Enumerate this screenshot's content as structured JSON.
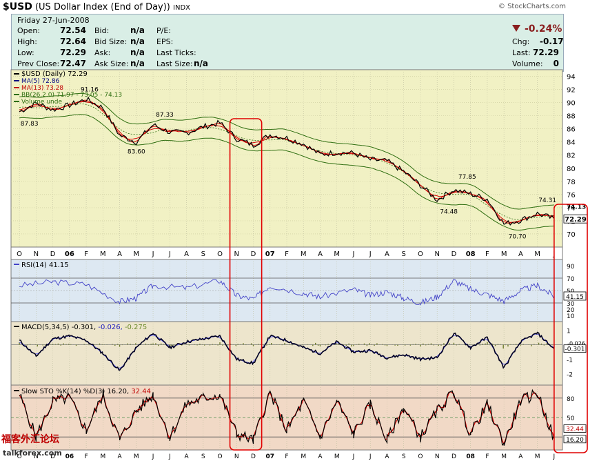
{
  "header": {
    "symbol": "$USD",
    "name": "(US Dollar Index (End of Day))",
    "exchange": "INDX",
    "watermark": "© StockCharts.com"
  },
  "quote": {
    "date": "Friday  27-Jun-2008",
    "open_label": "Open:",
    "open": "72.54",
    "high_label": "High:",
    "high": "72.64",
    "low_label": "Low:",
    "low": "72.29",
    "prev_label": "Prev Close:",
    "prev": "72.47",
    "bid_label": "Bid:",
    "bid": "n/a",
    "bidsize_label": "Bid Size:",
    "bidsize": "n/a",
    "ask_label": "Ask:",
    "ask": "n/a",
    "asksize_label": "Ask Size:",
    "asksize": "n/a",
    "pe_label": "P/E:",
    "eps_label": "EPS:",
    "lastticks_label": "Last Ticks:",
    "lastsize_label": "Last Size:",
    "lastsize": "n/a",
    "chgpct": "-0.24%",
    "chg_label": "Chg:",
    "chg": "-0.17",
    "last_label": "Last:",
    "last": "72.29",
    "vol_label": "Volume:",
    "vol": "0"
  },
  "legend": {
    "price": "$USD (Daily) 72.29",
    "ma5": "MA(5) 72.86",
    "ma13": "MA(13) 73.28",
    "bb": "BB(26,2.0) 71.97 - 73.05 - 74.13",
    "volume": "Volume unde",
    "rsi": "RSI(14) 41.15",
    "macd_label": "MACD(5,34,5)",
    "macd_v1": "-0.301,",
    "macd_v2": "-0.026,",
    "macd_v3": "-0.275",
    "sto": "Slow STO %K(14) %D(3) 16.20,",
    "sto_v2": "32.44"
  },
  "footer": {
    "site_cn": "福客外汇论坛",
    "site": "talkforex.com"
  },
  "colors": {
    "price_bg": "#f1f1c4",
    "rsi_bg": "#dde8f2",
    "macd_bg": "#ede5cc",
    "sto_bg": "#f1d9c6",
    "price_line": "#000000",
    "ma5": "#d40000",
    "ma13": "#d40000",
    "bb": "#2e6e10",
    "rsi_line": "#4343c8",
    "macd_line": "#000020",
    "signal_line": "#6060ff",
    "hist": "#6b7a2a",
    "sto_k": "#000000",
    "sto_d": "#d40000",
    "highlight": "#e00000"
  },
  "chart_data": {
    "type": "line",
    "x_months": [
      "O",
      "N",
      "D",
      "06",
      "F",
      "M",
      "A",
      "M",
      "J",
      "J",
      "A",
      "S",
      "O",
      "N",
      "D",
      "07",
      "F",
      "M",
      "A",
      "M",
      "J",
      "J",
      "A",
      "S",
      "O",
      "N",
      "D",
      "08",
      "F",
      "M",
      "A",
      "M",
      "J"
    ],
    "price_axis": {
      "ylim": [
        68,
        95
      ],
      "ticks": [
        70,
        72,
        74,
        76,
        78,
        80,
        82,
        84,
        86,
        88,
        90,
        92,
        94
      ]
    },
    "price_series": [
      [
        0,
        88.6
      ],
      [
        1,
        89.9
      ],
      [
        2,
        88.9
      ],
      [
        3,
        89.6
      ],
      [
        4,
        90.5
      ],
      [
        5,
        89.2
      ],
      [
        6,
        85.0
      ],
      [
        7,
        84.0
      ],
      [
        8,
        86.6
      ],
      [
        9,
        85.5
      ],
      [
        10,
        85.4
      ],
      [
        11,
        86.3
      ],
      [
        12,
        86.9
      ],
      [
        13,
        84.5
      ],
      [
        14,
        83.5
      ],
      [
        15,
        85.1
      ],
      [
        16,
        84.6
      ],
      [
        17,
        83.7
      ],
      [
        18,
        82.1
      ],
      [
        19,
        82.4
      ],
      [
        20,
        82.3
      ],
      [
        21,
        81.3
      ],
      [
        22,
        81.1
      ],
      [
        23,
        79.5
      ],
      [
        24,
        77.4
      ],
      [
        25,
        75.2
      ],
      [
        26,
        76.7
      ],
      [
        27,
        76.1
      ],
      [
        28,
        75.3
      ],
      [
        29,
        71.5
      ],
      [
        30,
        72.1
      ],
      [
        31,
        73.1
      ],
      [
        32,
        72.3
      ]
    ],
    "price_annotations": [
      {
        "x": 0.6,
        "y": 87.83,
        "label": "87.83"
      },
      {
        "x": 4.2,
        "y": 91.16,
        "label": "91.16"
      },
      {
        "x": 7.0,
        "y": 83.6,
        "label": "83.60"
      },
      {
        "x": 8.7,
        "y": 87.33,
        "label": "87.33"
      },
      {
        "x": 25.7,
        "y": 74.48,
        "label": "74.48"
      },
      {
        "x": 26.8,
        "y": 77.85,
        "label": "77.85"
      },
      {
        "x": 29.8,
        "y": 70.7,
        "label": "70.70"
      },
      {
        "x": 31.6,
        "y": 74.31,
        "label": "74.31"
      }
    ],
    "price_right_labels": [
      "74.13",
      "72.29"
    ],
    "rsi_axis": {
      "ylim": [
        0,
        100
      ],
      "ticks": [
        10,
        20,
        30,
        50,
        70,
        90
      ],
      "ref_lines": [
        30,
        70
      ]
    },
    "rsi_series": [
      [
        0,
        58
      ],
      [
        2,
        64
      ],
      [
        4,
        60
      ],
      [
        6,
        32
      ],
      [
        7,
        38
      ],
      [
        8,
        58
      ],
      [
        10,
        54
      ],
      [
        12,
        66
      ],
      [
        13,
        42
      ],
      [
        14,
        36
      ],
      [
        15,
        58
      ],
      [
        17,
        46
      ],
      [
        18,
        40
      ],
      [
        20,
        52
      ],
      [
        21,
        42
      ],
      [
        22,
        48
      ],
      [
        23,
        38
      ],
      [
        24,
        30
      ],
      [
        25,
        40
      ],
      [
        26,
        66
      ],
      [
        27,
        52
      ],
      [
        28,
        44
      ],
      [
        29,
        33
      ],
      [
        30,
        50
      ],
      [
        31,
        58
      ],
      [
        32,
        41.15
      ]
    ],
    "rsi_right_label": "41.15",
    "macd_axis": {
      "ylim": [
        -2.8,
        1.6
      ],
      "ticks": [
        -2,
        -1,
        1
      ]
    },
    "macd_series": [
      [
        0,
        0.3
      ],
      [
        1,
        -0.8
      ],
      [
        2,
        0.4
      ],
      [
        3,
        0.6
      ],
      [
        4,
        0.3
      ],
      [
        5,
        -0.6
      ],
      [
        6,
        -1.8
      ],
      [
        7,
        -0.2
      ],
      [
        8,
        0.8
      ],
      [
        9,
        -0.2
      ],
      [
        10,
        0.2
      ],
      [
        11,
        0.4
      ],
      [
        12,
        0.6
      ],
      [
        13,
        -1.0
      ],
      [
        14,
        -1.3
      ],
      [
        15,
        0.6
      ],
      [
        16,
        0.3
      ],
      [
        17,
        -0.2
      ],
      [
        18,
        -0.6
      ],
      [
        19,
        0.2
      ],
      [
        20,
        -0.5
      ],
      [
        21,
        -0.4
      ],
      [
        22,
        -0.9
      ],
      [
        23,
        -0.7
      ],
      [
        24,
        -1.0
      ],
      [
        25,
        -0.9
      ],
      [
        26,
        0.8
      ],
      [
        27,
        -0.2
      ],
      [
        28,
        0.5
      ],
      [
        29,
        -1.6
      ],
      [
        30,
        0.2
      ],
      [
        31,
        0.8
      ],
      [
        32,
        -0.301
      ]
    ],
    "macd_right_labels": [
      "-0.026",
      "-0.301"
    ],
    "sto_axis": {
      "ylim": [
        0,
        100
      ],
      "ticks": [
        20,
        50,
        80
      ],
      "ref_lines": [
        20,
        80
      ]
    },
    "sto_series": [
      [
        0,
        85
      ],
      [
        1,
        20
      ],
      [
        2,
        75
      ],
      [
        3,
        80
      ],
      [
        4,
        30
      ],
      [
        5,
        85
      ],
      [
        6,
        15
      ],
      [
        7,
        60
      ],
      [
        8,
        85
      ],
      [
        9,
        20
      ],
      [
        10,
        70
      ],
      [
        11,
        80
      ],
      [
        12,
        85
      ],
      [
        13,
        25
      ],
      [
        14,
        15
      ],
      [
        15,
        88
      ],
      [
        16,
        30
      ],
      [
        17,
        75
      ],
      [
        18,
        20
      ],
      [
        19,
        75
      ],
      [
        20,
        25
      ],
      [
        21,
        70
      ],
      [
        22,
        15
      ],
      [
        23,
        65
      ],
      [
        24,
        20
      ],
      [
        25,
        60
      ],
      [
        26,
        90
      ],
      [
        27,
        25
      ],
      [
        28,
        70
      ],
      [
        29,
        10
      ],
      [
        30,
        75
      ],
      [
        31,
        88
      ],
      [
        32,
        16.2
      ]
    ],
    "sto_right_labels": [
      "32.44",
      "16.20"
    ],
    "highlights": [
      {
        "from_month": "N",
        "to_month": "D",
        "index_from": 13.1,
        "index_to": 15.0
      },
      {
        "from_month": "J",
        "to_month": "J",
        "index_from": 32.5,
        "index_to": 33.3
      }
    ]
  }
}
